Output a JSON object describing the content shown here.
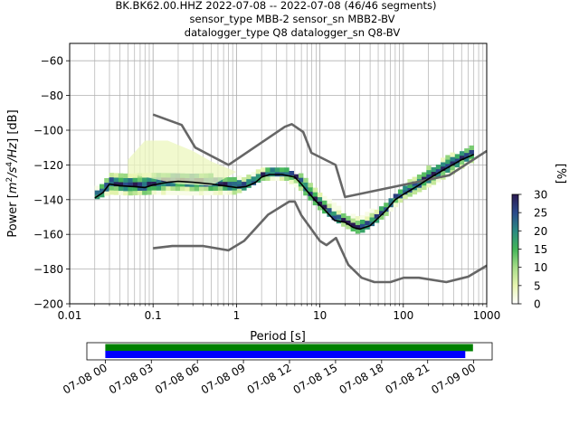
{
  "title_lines": [
    "BK.BK62.00.HHZ   2022-07-08 -- 2022-07-08  (46/46 segments)",
    "sensor_type MBB-2 sensor_sn MBB2-BV",
    "datalogger_type Q8 datalogger_sn Q8-BV"
  ],
  "chart_data": {
    "type": "heatmap",
    "xlabel": "Period [s]",
    "ylabel_parts": {
      "pre": "Power [",
      "m": "m",
      "exp2": "2",
      "s": "/s",
      "exp4": "4",
      "hz": "/Hz",
      "post": "] [dB]"
    },
    "x_scale": "log",
    "xlim": [
      0.01,
      1000
    ],
    "ylim": [
      -200,
      -50
    ],
    "x_ticks": [
      {
        "value": 0.01,
        "label": "0.01"
      },
      {
        "value": 0.1,
        "label": "0.1"
      },
      {
        "value": 1,
        "label": "1"
      },
      {
        "value": 10,
        "label": "10"
      },
      {
        "value": 100,
        "label": "100"
      },
      {
        "value": 1000,
        "label": "1000"
      }
    ],
    "y_ticks": [
      {
        "value": -60,
        "label": "−60"
      },
      {
        "value": -80,
        "label": "−80"
      },
      {
        "value": -100,
        "label": "−100"
      },
      {
        "value": -120,
        "label": "−120"
      },
      {
        "value": -140,
        "label": "−140"
      },
      {
        "value": -160,
        "label": "−160"
      },
      {
        "value": -180,
        "label": "−180"
      },
      {
        "value": -200,
        "label": "−200"
      }
    ],
    "grid": true,
    "noise_models": {
      "color": "#666666",
      "nhnm": [
        [
          0.1,
          -91
        ],
        [
          0.22,
          -97
        ],
        [
          0.32,
          -110
        ],
        [
          0.8,
          -120
        ],
        [
          3.8,
          -98
        ],
        [
          4.6,
          -96.5
        ],
        [
          6.3,
          -101
        ],
        [
          7.9,
          -113
        ],
        [
          15.4,
          -120
        ],
        [
          20,
          -138.5
        ],
        [
          354.8,
          -126
        ],
        [
          1000,
          -112
        ]
      ],
      "nlnm": [
        [
          0.1,
          -168
        ],
        [
          0.17,
          -166.7
        ],
        [
          0.4,
          -166.7
        ],
        [
          0.8,
          -169.2
        ],
        [
          1.24,
          -163.7
        ],
        [
          2.4,
          -148.6
        ],
        [
          4.3,
          -141.1
        ],
        [
          5,
          -141.1
        ],
        [
          6,
          -149
        ],
        [
          10,
          -163.8
        ],
        [
          12,
          -166.2
        ],
        [
          15.6,
          -162.1
        ],
        [
          21.9,
          -177.5
        ],
        [
          31.6,
          -185
        ],
        [
          45,
          -187.5
        ],
        [
          70,
          -187.5
        ],
        [
          101,
          -185
        ],
        [
          154,
          -185
        ],
        [
          328,
          -187.5
        ],
        [
          600,
          -184.4
        ],
        [
          1000,
          -178
        ]
      ]
    },
    "mean_curve": {
      "color": "#000000",
      "points": [
        [
          0.02,
          -139
        ],
        [
          0.025,
          -136
        ],
        [
          0.03,
          -131
        ],
        [
          0.04,
          -132
        ],
        [
          0.06,
          -132.5
        ],
        [
          0.08,
          -133
        ],
        [
          0.1,
          -131.5
        ],
        [
          0.15,
          -130
        ],
        [
          0.2,
          -129.5
        ],
        [
          0.3,
          -130
        ],
        [
          0.5,
          -131
        ],
        [
          0.7,
          -132
        ],
        [
          1.0,
          -133
        ],
        [
          1.3,
          -132.5
        ],
        [
          1.7,
          -130
        ],
        [
          2.0,
          -127
        ],
        [
          2.5,
          -125.5
        ],
        [
          3.5,
          -125.5
        ],
        [
          5.0,
          -127
        ],
        [
          6.0,
          -131
        ],
        [
          7.0,
          -135
        ],
        [
          9.0,
          -141
        ],
        [
          11.0,
          -145
        ],
        [
          15.0,
          -152
        ],
        [
          20.0,
          -153
        ],
        [
          25.0,
          -156
        ],
        [
          30.0,
          -157
        ],
        [
          40.0,
          -155
        ],
        [
          60.0,
          -147
        ],
        [
          80.0,
          -140
        ],
        [
          100.0,
          -137
        ],
        [
          150.0,
          -132
        ],
        [
          200.0,
          -128
        ],
        [
          300.0,
          -123
        ],
        [
          500.0,
          -117
        ],
        [
          700.0,
          -114
        ]
      ]
    },
    "pdf_band": {
      "upper": [
        [
          0.02,
          -135
        ],
        [
          0.03,
          -127
        ],
        [
          0.05,
          -127
        ],
        [
          0.1,
          -126
        ],
        [
          0.3,
          -126
        ],
        [
          1.0,
          -129
        ],
        [
          2.0,
          -123
        ],
        [
          4.0,
          -122.5
        ],
        [
          6.0,
          -127
        ],
        [
          10.0,
          -136
        ],
        [
          20.0,
          -149
        ],
        [
          30.0,
          -152
        ],
        [
          60.0,
          -143
        ],
        [
          100.0,
          -133
        ],
        [
          200.0,
          -123
        ],
        [
          400.0,
          -115
        ],
        [
          700.0,
          -110
        ]
      ],
      "lower": [
        [
          0.02,
          -140
        ],
        [
          0.03,
          -137
        ],
        [
          0.05,
          -137.5
        ],
        [
          0.1,
          -137
        ],
        [
          0.3,
          -137.5
        ],
        [
          1.0,
          -137
        ],
        [
          2.0,
          -129
        ],
        [
          4.0,
          -129
        ],
        [
          6.0,
          -135
        ],
        [
          10.0,
          -146
        ],
        [
          20.0,
          -156
        ],
        [
          30.0,
          -160
        ],
        [
          60.0,
          -150
        ],
        [
          100.0,
          -140
        ],
        [
          200.0,
          -133
        ],
        [
          400.0,
          -125
        ],
        [
          700.0,
          -118
        ]
      ],
      "faint_cloud": [
        [
          0.05,
          -117
        ],
        [
          0.08,
          -106
        ],
        [
          0.15,
          -106
        ],
        [
          0.3,
          -112
        ],
        [
          0.5,
          -118
        ],
        [
          1.0,
          -124
        ],
        [
          0.5,
          -132
        ],
        [
          0.2,
          -131
        ],
        [
          0.08,
          -127
        ],
        [
          0.05,
          -125
        ]
      ]
    },
    "colorbar": {
      "label": "[%]",
      "min": 0,
      "max": 30,
      "ticks": [
        {
          "value": 0,
          "label": "0"
        },
        {
          "value": 5,
          "label": "5"
        },
        {
          "value": 10,
          "label": "10"
        },
        {
          "value": 15,
          "label": "15"
        },
        {
          "value": 20,
          "label": "20"
        },
        {
          "value": 25,
          "label": "25"
        },
        {
          "value": 30,
          "label": "30"
        }
      ],
      "stops": [
        "#ffffff",
        "#e8f5b0",
        "#a6dd88",
        "#42b558",
        "#2a8a82",
        "#2a4a8c",
        "#2a1950"
      ]
    },
    "coverage": {
      "ticks": [
        {
          "hour": 0,
          "label": "07-08 00"
        },
        {
          "hour": 3,
          "label": "07-08 03"
        },
        {
          "hour": 6,
          "label": "07-08 06"
        },
        {
          "hour": 9,
          "label": "07-08 09"
        },
        {
          "hour": 12,
          "label": "07-08 12"
        },
        {
          "hour": 15,
          "label": "07-08 15"
        },
        {
          "hour": 18,
          "label": "07-08 18"
        },
        {
          "hour": 21,
          "label": "07-08 21"
        },
        {
          "hour": 24,
          "label": "07-09 00"
        }
      ],
      "range_hours": [
        -1.2,
        25.2
      ],
      "bars": [
        {
          "color": "#008000",
          "start_hour": 0,
          "end_hour": 23.95
        },
        {
          "color": "#0000ff",
          "start_hour": 0,
          "end_hour": 23.45
        }
      ]
    }
  }
}
